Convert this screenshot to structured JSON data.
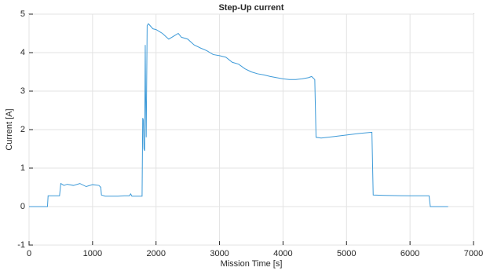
{
  "chart_data": {
    "type": "line",
    "title": "Step-Up current",
    "x_label": "Mission Time [s]",
    "y_label": "Current [A]",
    "x": [
      0,
      290,
      300,
      480,
      500,
      550,
      600,
      700,
      800,
      900,
      1000,
      1100,
      1130,
      1140,
      1200,
      1400,
      1500,
      1580,
      1600,
      1620,
      1780,
      1790,
      1800,
      1810,
      1820,
      1830,
      1835,
      1845,
      1860,
      1880,
      1950,
      2000,
      2050,
      2100,
      2200,
      2300,
      2350,
      2400,
      2500,
      2600,
      2700,
      2800,
      2900,
      3000,
      3100,
      3200,
      3300,
      3400,
      3500,
      3600,
      3700,
      3800,
      3900,
      4000,
      4100,
      4200,
      4300,
      4400,
      4450,
      4500,
      4520,
      4600,
      4800,
      5000,
      5200,
      5400,
      5420,
      5600,
      6000,
      6300,
      6320,
      6600
    ],
    "series": [
      {
        "name": "Current",
        "color": "#3d9ad8",
        "values": [
          0,
          0,
          0.28,
          0.28,
          0.6,
          0.55,
          0.58,
          0.55,
          0.6,
          0.52,
          0.57,
          0.55,
          0.5,
          0.3,
          0.27,
          0.27,
          0.28,
          0.28,
          0.33,
          0.27,
          0.27,
          2.3,
          2.25,
          1.5,
          1.45,
          4.2,
          3.0,
          1.8,
          4.7,
          4.75,
          4.62,
          4.6,
          4.55,
          4.5,
          4.35,
          4.45,
          4.5,
          4.4,
          4.35,
          4.2,
          4.12,
          4.05,
          3.95,
          3.92,
          3.88,
          3.75,
          3.7,
          3.58,
          3.5,
          3.45,
          3.42,
          3.38,
          3.35,
          3.32,
          3.3,
          3.3,
          3.32,
          3.35,
          3.38,
          3.3,
          1.8,
          1.78,
          1.82,
          1.86,
          1.9,
          1.93,
          0.3,
          0.29,
          0.28,
          0.28,
          0,
          0
        ]
      }
    ],
    "xlim": [
      0,
      7000
    ],
    "xticks": [
      0,
      1000,
      2000,
      3000,
      4000,
      5000,
      6000,
      7000
    ],
    "ylim": [
      -1,
      5
    ],
    "yticks": [
      -1,
      0,
      1,
      2,
      3,
      4,
      5
    ],
    "grid": true
  }
}
